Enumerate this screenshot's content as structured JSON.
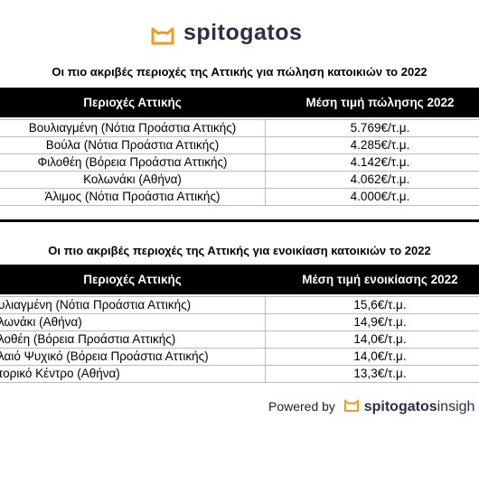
{
  "logo": {
    "brand": "spitogatos"
  },
  "sale_table": {
    "title": "Οι πιο ακριβές περιοχές της Αττικής για πώληση κατοικιών το 2022",
    "headers": [
      "Περιοχές Αττικής",
      "Μέση τιμή πώλησης 2022"
    ],
    "rows": [
      [
        "Βουλιαγμένη (Νότια Προάστια Αττικής)",
        "5.769€/τ.μ."
      ],
      [
        "Βούλα (Νότια Προάστια Αττικής)",
        "4.285€/τ.μ."
      ],
      [
        "Φιλοθέη (Βόρεια Προάστια Αττικής)",
        "4.142€/τ.μ."
      ],
      [
        "Κολωνάκι (Αθήνα)",
        "4.062€/τ.μ."
      ],
      [
        "Άλιμος (Νότια Προάστια Αττικής)",
        "4.000€/τ.μ."
      ]
    ]
  },
  "rent_table": {
    "title": "Οι πιο ακριβές περιοχές της Αττικής για ενοικίαση κατοικιών το 2022",
    "headers": [
      "Περιοχές Αττικής",
      "Μέση τιμή ενοικίασης 2022"
    ],
    "rows": [
      [
        "υλιαγμένη (Νότια Προάστια Αττικής)",
        "15,6€/τ.μ."
      ],
      [
        "λωνάκι (Αθήνα)",
        "14,9€/τ.μ."
      ],
      [
        "λοθέη (Βόρεια Προάστια Αττικής)",
        "14,0€/τ.μ."
      ],
      [
        "λαιό Ψυχικό (Βόρεια Προάστια Αττικής)",
        "14,0€/τ.μ."
      ],
      [
        "τορικό Κέντρο (Αθήνα)",
        "13,3€/τ.μ."
      ]
    ]
  },
  "footer": {
    "powered_by": "Powered by",
    "brand": "spitogatos",
    "suffix": "insigh"
  }
}
